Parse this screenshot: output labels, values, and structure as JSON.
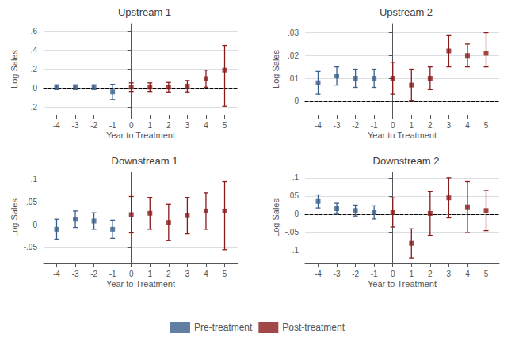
{
  "chart_data": [
    {
      "type": "scatter",
      "title": "Upstream 1",
      "xlabel": "Year to Treatment",
      "ylabel": "Log Sales",
      "xlim": [
        -4.7,
        5.7
      ],
      "xticks": [
        -4,
        -3,
        -2,
        -1,
        0,
        1,
        2,
        3,
        4,
        5
      ],
      "ylim": [
        -0.28,
        0.68
      ],
      "yticks": [
        {
          "value": -0.2,
          "label": "-.2"
        },
        0,
        {
          "value": 0.2,
          "label": ".2"
        },
        {
          "value": 0.4,
          "label": ".4"
        },
        {
          "value": 0.6,
          "label": ".6"
        }
      ],
      "grid": true,
      "marker": "square",
      "legend": "bottom",
      "series": [
        {
          "name": "Pre-treatment",
          "color": "#3a5f8a",
          "x": [
            -4,
            -3,
            -2,
            -1
          ],
          "values": [
            0.01,
            0.01,
            0.01,
            -0.04
          ],
          "error_lo": [
            0.025,
            0.025,
            0.025,
            0.08
          ],
          "error_hi": [
            0.025,
            0.025,
            0.025,
            0.08
          ]
        },
        {
          "name": "Post-treatment",
          "color": "#8b1a1a",
          "x": [
            0,
            1,
            2,
            3,
            4,
            5
          ],
          "values": [
            0.01,
            0.01,
            0.01,
            0.02,
            0.1,
            0.19
          ],
          "error_lo": [
            0.045,
            0.045,
            0.05,
            0.06,
            0.09,
            0.38
          ],
          "error_hi": [
            0.045,
            0.045,
            0.05,
            0.06,
            0.09,
            0.26
          ]
        }
      ]
    },
    {
      "type": "scatter",
      "title": "Upstream 2",
      "xlabel": "Year to Treatment",
      "ylabel": "Log Sales",
      "xlim": [
        -4.7,
        5.7
      ],
      "xticks": [
        -4,
        -3,
        -2,
        -1,
        0,
        1,
        2,
        3,
        4,
        5
      ],
      "ylim": [
        -0.006,
        0.034
      ],
      "yticks": [
        0,
        {
          "value": 0.01,
          "label": ".01"
        },
        {
          "value": 0.02,
          "label": ".02"
        },
        {
          "value": 0.03,
          "label": ".03"
        }
      ],
      "grid": true,
      "marker": "square",
      "legend": "bottom",
      "series": [
        {
          "name": "Pre-treatment",
          "color": "#3a5f8a",
          "x": [
            -4,
            -3,
            -2,
            -1
          ],
          "values": [
            0.008,
            0.011,
            0.01,
            0.01
          ],
          "error_lo": [
            0.005,
            0.004,
            0.004,
            0.004
          ],
          "error_hi": [
            0.005,
            0.004,
            0.004,
            0.004
          ]
        },
        {
          "name": "Post-treatment",
          "color": "#8b1a1a",
          "x": [
            0,
            1,
            2,
            3,
            4,
            5
          ],
          "values": [
            0.01,
            0.007,
            0.01,
            0.022,
            0.02,
            0.021
          ],
          "error_lo": [
            0.007,
            0.007,
            0.005,
            0.007,
            0.005,
            0.006
          ],
          "error_hi": [
            0.007,
            0.007,
            0.005,
            0.007,
            0.005,
            0.009
          ]
        }
      ]
    },
    {
      "type": "scatter",
      "title": "Downstream 1",
      "xlabel": "Year to Treatment",
      "ylabel": "Log Sales",
      "xlim": [
        -4.7,
        5.7
      ],
      "xticks": [
        -4,
        -3,
        -2,
        -1,
        0,
        1,
        2,
        3,
        4,
        5
      ],
      "ylim": [
        -0.085,
        0.115
      ],
      "yticks": [
        {
          "value": -0.05,
          "label": "-.05"
        },
        0,
        {
          "value": 0.05,
          "label": ".05"
        },
        {
          "value": 0.1,
          "label": ".1"
        }
      ],
      "grid": true,
      "marker": "square",
      "legend": "bottom",
      "series": [
        {
          "name": "Pre-treatment",
          "color": "#3a5f8a",
          "x": [
            -4,
            -3,
            -2,
            -1
          ],
          "values": [
            -0.01,
            0.012,
            0.008,
            -0.01
          ],
          "error_lo": [
            0.022,
            0.018,
            0.018,
            0.02
          ],
          "error_hi": [
            0.022,
            0.018,
            0.018,
            0.02
          ]
        },
        {
          "name": "Post-treatment",
          "color": "#8b1a1a",
          "x": [
            0,
            1,
            2,
            3,
            4,
            5
          ],
          "values": [
            0.022,
            0.025,
            0.005,
            0.02,
            0.03,
            0.03
          ],
          "error_lo": [
            0.04,
            0.035,
            0.04,
            0.04,
            0.04,
            0.085
          ],
          "error_hi": [
            0.04,
            0.035,
            0.04,
            0.04,
            0.04,
            0.065
          ]
        }
      ]
    },
    {
      "type": "scatter",
      "title": "Downstream 2",
      "xlabel": "Year to Treatment",
      "ylabel": "Log Sales",
      "xlim": [
        -4.7,
        5.7
      ],
      "xticks": [
        -4,
        -3,
        -2,
        -1,
        0,
        1,
        2,
        3,
        4,
        5
      ],
      "ylim": [
        -0.135,
        0.115
      ],
      "yticks": [
        {
          "value": -0.1,
          "label": "-.1"
        },
        {
          "value": -0.05,
          "label": "-.05"
        },
        0,
        {
          "value": 0.05,
          "label": ".05"
        },
        {
          "value": 0.1,
          "label": ".1"
        }
      ],
      "grid": true,
      "marker": "square",
      "legend": "bottom",
      "series": [
        {
          "name": "Pre-treatment",
          "color": "#3a5f8a",
          "x": [
            -4,
            -3,
            -2,
            -1
          ],
          "values": [
            0.035,
            0.015,
            0.01,
            0.005
          ],
          "error_lo": [
            0.018,
            0.015,
            0.015,
            0.018
          ],
          "error_hi": [
            0.018,
            0.015,
            0.015,
            0.018
          ]
        },
        {
          "name": "Post-treatment",
          "color": "#8b1a1a",
          "x": [
            0,
            1,
            2,
            3,
            4,
            5
          ],
          "values": [
            0.005,
            -0.08,
            0.002,
            0.045,
            0.02,
            0.01
          ],
          "error_lo": [
            0.04,
            0.04,
            0.06,
            0.055,
            0.07,
            0.055
          ],
          "error_hi": [
            0.04,
            0.04,
            0.06,
            0.055,
            0.07,
            0.055
          ]
        }
      ]
    }
  ]
}
